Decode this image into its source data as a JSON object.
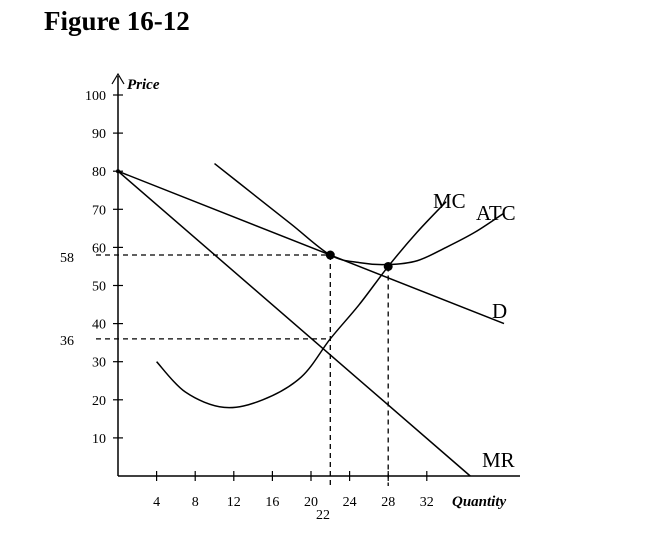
{
  "title": "Figure 16-12",
  "chart_data": {
    "type": "line",
    "xlabel": "Quantity",
    "ylabel": "Price",
    "xlim": [
      0,
      44
    ],
    "ylim": [
      0,
      105
    ],
    "x_ticks": [
      "4",
      "8",
      "12",
      "16",
      "20",
      "24",
      "28",
      "32"
    ],
    "y_ticks": [
      "10",
      "20",
      "30",
      "40",
      "50",
      "60",
      "70",
      "80",
      "90",
      "100"
    ],
    "series": [
      {
        "name": "D",
        "points": [
          [
            0,
            80
          ],
          [
            40,
            40
          ]
        ]
      },
      {
        "name": "MR",
        "points": [
          [
            0,
            80
          ],
          [
            36.5,
            0
          ]
        ]
      },
      {
        "name": "ATC",
        "points": [
          [
            10,
            82
          ],
          [
            14,
            74
          ],
          [
            18,
            66
          ],
          [
            22,
            58
          ],
          [
            25,
            56
          ],
          [
            28,
            55.5
          ],
          [
            31,
            56.5
          ],
          [
            34,
            60
          ],
          [
            37,
            64
          ],
          [
            40,
            69
          ]
        ]
      },
      {
        "name": "MC",
        "points": [
          [
            4,
            30
          ],
          [
            7,
            22
          ],
          [
            11,
            18
          ],
          [
            15,
            20
          ],
          [
            19,
            26
          ],
          [
            22,
            36
          ],
          [
            25,
            45
          ],
          [
            28,
            55
          ],
          [
            31,
            64
          ],
          [
            34,
            72
          ]
        ]
      }
    ],
    "guides": [
      {
        "label": "58",
        "y": 58,
        "x_end": 22
      },
      {
        "label": "36",
        "y": 36,
        "x_end": 22
      },
      {
        "label": "22",
        "x": 22
      },
      {
        "x": 28,
        "y_top": 55
      }
    ],
    "highlight_points": [
      [
        22,
        58
      ],
      [
        28,
        55
      ]
    ],
    "grid": false,
    "legend": "none"
  }
}
